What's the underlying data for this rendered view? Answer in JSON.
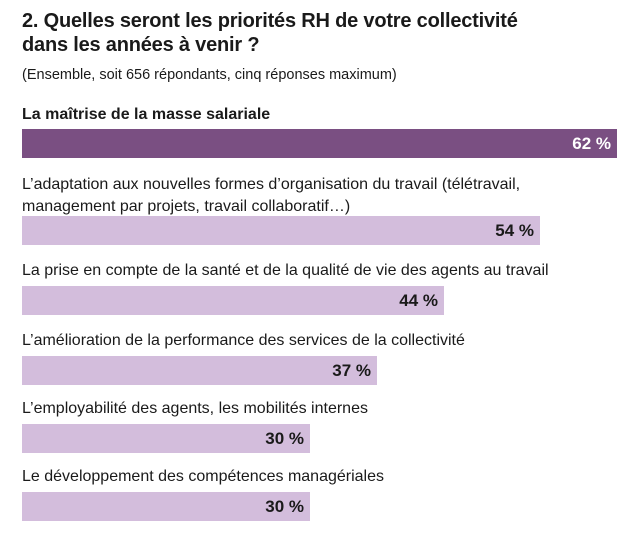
{
  "chart_data": {
    "type": "bar",
    "orientation": "horizontal",
    "title": "2. Quelles seront les priorités RH de votre collectivité\ndans les années à venir ?",
    "subtitle": "(Ensemble, soit 656 répondants, cinq réponses maximum)",
    "unit": "%",
    "xlim": [
      0,
      62
    ],
    "categories": [
      "La maîtrise de la masse salariale",
      "L’adaptation aux nouvelles formes d’organisation du travail (télétravail,\nmanagement par projets, travail collaboratif…)",
      "La prise en compte de la santé et de la qualité de vie des agents au travail",
      "L’amélioration de la performance des services de la collectivité",
      "L’employabilité des agents, les mobilités internes",
      "Le développement des compétences managériales"
    ],
    "values": [
      62,
      54,
      44,
      37,
      30,
      30
    ],
    "value_labels": [
      "62 %",
      "54 %",
      "44 %",
      "37 %",
      "30 %",
      "30 %"
    ],
    "highlight_index": 0,
    "colors": {
      "highlight_bar": "#7a4f82",
      "bar": "#d3bddc"
    }
  }
}
